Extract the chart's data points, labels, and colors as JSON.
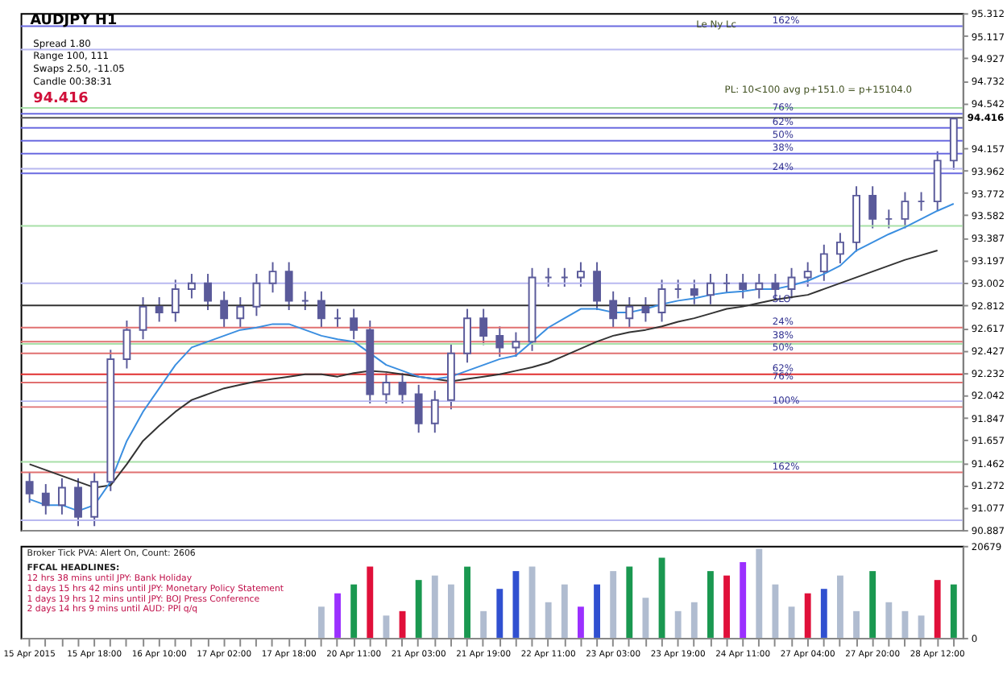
{
  "chart_data": [
    {
      "type": "candlestick",
      "color": "#5a5a9a",
      "tick_labels": "y",
      "grid": false,
      "categories": [
        "15 Apr 2015",
        null,
        null,
        null,
        "15 Apr 18:00",
        null,
        null,
        null,
        "16 Apr 10:00",
        null,
        null,
        null,
        "17 Apr 02:00",
        null,
        null,
        null,
        "17 Apr 18:00",
        null,
        null,
        null,
        "20 Apr 11:00",
        null,
        null,
        null,
        "21 Apr 03:00",
        null,
        null,
        null,
        "21 Apr 19:00",
        null,
        null,
        null,
        "22 Apr 11:00",
        null,
        null,
        null,
        "23 Apr 03:00",
        null,
        null,
        null,
        "23 Apr 19:00",
        null,
        null,
        null,
        "24 Apr 11:00",
        null,
        null,
        null,
        "27 Apr 04:00",
        null,
        null,
        null,
        "27 Apr 20:00",
        null,
        null,
        null,
        "28 Apr 12:00",
        null
      ],
      "ohlc": [
        [
          91.3,
          91.38,
          91.12,
          91.2
        ],
        [
          91.2,
          91.28,
          91.02,
          91.1
        ],
        [
          91.1,
          91.33,
          91.02,
          91.25
        ],
        [
          91.25,
          91.33,
          90.92,
          91.0
        ],
        [
          91.0,
          91.38,
          90.92,
          91.3
        ],
        [
          91.3,
          92.43,
          91.22,
          92.35
        ],
        [
          92.35,
          92.68,
          92.27,
          92.6
        ],
        [
          92.6,
          92.88,
          92.52,
          92.8
        ],
        [
          92.8,
          92.88,
          92.67,
          92.75
        ],
        [
          92.75,
          93.03,
          92.67,
          92.95
        ],
        [
          92.95,
          93.08,
          92.87,
          93.0
        ],
        [
          93.0,
          93.08,
          92.77,
          92.85
        ],
        [
          92.85,
          92.93,
          92.62,
          92.7
        ],
        [
          92.7,
          92.88,
          92.62,
          92.8
        ],
        [
          92.8,
          93.08,
          92.72,
          93.0
        ],
        [
          93.0,
          93.18,
          92.92,
          93.1
        ],
        [
          93.1,
          93.18,
          92.77,
          92.85
        ],
        [
          92.85,
          92.93,
          92.77,
          92.85
        ],
        [
          92.85,
          92.93,
          92.62,
          92.7
        ],
        [
          92.7,
          92.78,
          92.62,
          92.7
        ],
        [
          92.7,
          92.78,
          92.52,
          92.6
        ],
        [
          92.6,
          92.68,
          91.97,
          92.05
        ],
        [
          92.05,
          92.23,
          91.97,
          92.15
        ],
        [
          92.15,
          92.23,
          91.97,
          92.05
        ],
        [
          92.05,
          92.13,
          91.72,
          91.8
        ],
        [
          91.8,
          92.08,
          91.72,
          92.0
        ],
        [
          92.0,
          92.48,
          91.92,
          92.4
        ],
        [
          92.4,
          92.78,
          92.32,
          92.7
        ],
        [
          92.7,
          92.78,
          92.47,
          92.55
        ],
        [
          92.55,
          92.63,
          92.37,
          92.45
        ],
        [
          92.45,
          92.58,
          92.37,
          92.5
        ],
        [
          92.5,
          93.13,
          92.42,
          93.05
        ],
        [
          93.05,
          93.13,
          92.97,
          93.05
        ],
        [
          93.05,
          93.13,
          92.97,
          93.05
        ],
        [
          93.05,
          93.18,
          92.97,
          93.1
        ],
        [
          93.1,
          93.18,
          92.77,
          92.85
        ],
        [
          92.85,
          92.93,
          92.62,
          92.7
        ],
        [
          92.7,
          92.88,
          92.62,
          92.8
        ],
        [
          92.8,
          92.88,
          92.67,
          92.75
        ],
        [
          92.75,
          93.03,
          92.67,
          92.95
        ],
        [
          92.95,
          93.03,
          92.87,
          92.95
        ],
        [
          92.95,
          93.03,
          92.82,
          92.9
        ],
        [
          92.9,
          93.08,
          92.82,
          93.0
        ],
        [
          93.0,
          93.08,
          92.92,
          93.0
        ],
        [
          93.0,
          93.08,
          92.87,
          92.95
        ],
        [
          92.95,
          93.08,
          92.87,
          93.0
        ],
        [
          93.0,
          93.08,
          92.87,
          92.95
        ],
        [
          92.95,
          93.13,
          92.87,
          93.05
        ],
        [
          93.05,
          93.18,
          92.97,
          93.1
        ],
        [
          93.1,
          93.33,
          93.02,
          93.25
        ],
        [
          93.25,
          93.43,
          93.17,
          93.35
        ],
        [
          93.35,
          93.83,
          93.27,
          93.75
        ],
        [
          93.75,
          93.83,
          93.47,
          93.55
        ],
        [
          93.55,
          93.63,
          93.47,
          93.55
        ],
        [
          93.55,
          93.78,
          93.47,
          93.7
        ],
        [
          93.7,
          93.78,
          93.62,
          93.7
        ],
        [
          93.7,
          94.13,
          93.62,
          94.05
        ],
        [
          94.05,
          94.41,
          93.97,
          94.41
        ]
      ],
      "series": [
        {
          "type": "line",
          "color": "#333333",
          "values": [
            91.45,
            91.4,
            91.35,
            91.3,
            91.25,
            91.27,
            91.45,
            91.65,
            91.78,
            91.9,
            92.0,
            92.05,
            92.1,
            92.13,
            92.16,
            92.18,
            92.2,
            92.22,
            92.22,
            92.2,
            92.23,
            92.25,
            92.24,
            92.22,
            92.2,
            92.18,
            92.16,
            92.18,
            92.2,
            92.22,
            92.25,
            92.28,
            92.32,
            92.38,
            92.44,
            92.5,
            92.55,
            92.58,
            92.6,
            92.63,
            92.67,
            92.7,
            92.74,
            92.78,
            92.8,
            92.83,
            92.86,
            92.88,
            92.9,
            92.95,
            93.0,
            93.05,
            93.1,
            93.15,
            93.2,
            93.24,
            93.28,
            null
          ]
        },
        {
          "type": "line",
          "color": "#3a8ee0",
          "values": [
            91.15,
            91.1,
            91.1,
            91.05,
            91.1,
            91.3,
            91.65,
            91.9,
            92.1,
            92.3,
            92.45,
            92.5,
            92.55,
            92.6,
            92.62,
            92.65,
            92.65,
            92.6,
            92.55,
            92.52,
            92.5,
            92.4,
            92.3,
            92.25,
            92.2,
            92.18,
            92.2,
            92.25,
            92.3,
            92.35,
            92.38,
            92.5,
            92.62,
            92.7,
            92.78,
            92.78,
            92.75,
            92.75,
            92.78,
            92.82,
            92.85,
            92.87,
            92.9,
            92.92,
            92.93,
            92.95,
            92.95,
            92.98,
            93.02,
            93.08,
            93.15,
            93.28,
            93.35,
            93.42,
            93.48,
            93.55,
            93.62,
            93.68
          ]
        }
      ],
      "ylim": [
        90.887,
        95.312
      ],
      "yticks": [
        95.312,
        95.117,
        94.927,
        94.732,
        94.542,
        94.157,
        93.962,
        93.772,
        93.582,
        93.387,
        93.197,
        93.002,
        92.812,
        92.617,
        92.427,
        92.232,
        92.042,
        91.847,
        91.657,
        91.462,
        91.272,
        91.077,
        90.887
      ],
      "ref_lines": [
        {
          "axis": "y",
          "value": 95.0,
          "color": "#b8b8f0"
        },
        {
          "axis": "y",
          "value": 94.5,
          "color": "#a8e0a8"
        },
        {
          "axis": "y",
          "value": 93.98,
          "color": "#b8b8f0"
        },
        {
          "axis": "y",
          "value": 93.49,
          "color": "#a8e0a8"
        },
        {
          "axis": "y",
          "value": 93.0,
          "color": "#b8b8f0"
        },
        {
          "axis": "y",
          "value": 92.48,
          "color": "#a8e0a8"
        },
        {
          "axis": "y",
          "value": 91.99,
          "color": "#b8b8f0"
        },
        {
          "axis": "y",
          "value": 91.47,
          "color": "#a8e0a8"
        },
        {
          "axis": "y",
          "value": 90.97,
          "color": "#b8b8f0"
        },
        {
          "axis": "y",
          "value": 94.416,
          "label": "94.416",
          "color": "#555555"
        },
        {
          "axis": "y",
          "value": 95.2,
          "color": "#6a6ae0"
        },
        {
          "axis": "y",
          "value": 94.45,
          "color": "#6a6ae0"
        },
        {
          "axis": "y",
          "value": 94.33,
          "color": "#6a6ae0"
        },
        {
          "axis": "y",
          "value": 94.22,
          "color": "#6a6ae0"
        },
        {
          "axis": "y",
          "value": 94.11,
          "color": "#6a6ae0"
        },
        {
          "axis": "y",
          "value": 93.94,
          "color": "#6a6ae0"
        },
        {
          "axis": "y",
          "value": 92.81,
          "color": "#333333"
        },
        {
          "axis": "y",
          "value": 92.62,
          "color": "#e07070"
        },
        {
          "axis": "y",
          "value": 92.5,
          "color": "#e07070"
        },
        {
          "axis": "y",
          "value": 92.4,
          "color": "#e07070"
        },
        {
          "axis": "y",
          "value": 92.22,
          "color": "#e03030"
        },
        {
          "axis": "y",
          "value": 92.15,
          "color": "#e07070"
        },
        {
          "axis": "y",
          "value": 91.94,
          "color": "#e07070"
        },
        {
          "axis": "y",
          "value": 91.38,
          "color": "#e07070"
        }
      ],
      "annotations": [
        "AUDJPY  H1",
        "Spread  1.80",
        "Range  100, 111",
        "Swaps  2.50, -11.05",
        "Candle  00:38:31",
        "94.416",
        "PL: 10<100 avg p+151.0 = p+15104.0",
        "Le  Ny  Lc",
        {
          "text": "162%",
          "y": 95.2
        },
        {
          "text": "76%",
          "y": 94.45
        },
        {
          "text": "62%",
          "y": 94.33
        },
        {
          "text": "50%",
          "y": 94.22
        },
        {
          "text": "38%",
          "y": 94.11
        },
        {
          "text": "24%",
          "y": 93.94
        },
        {
          "text": "SLO",
          "y": 92.81
        },
        {
          "text": "24%",
          "y": 92.62
        },
        {
          "text": "38%",
          "y": 92.5
        },
        {
          "text": "50%",
          "y": 92.4
        },
        {
          "text": "62%",
          "y": 92.22
        },
        {
          "text": "76%",
          "y": 92.15
        },
        {
          "text": "100%",
          "y": 91.94
        },
        {
          "text": "162%",
          "y": 91.38
        }
      ]
    },
    {
      "type": "bar",
      "tick_labels": "xy",
      "values": [
        null,
        null,
        null,
        null,
        null,
        null,
        null,
        null,
        null,
        null,
        null,
        null,
        null,
        null,
        null,
        null,
        null,
        null,
        7000,
        10000,
        12000,
        16000,
        5000,
        6000,
        13000,
        14000,
        12000,
        16000,
        6000,
        11000,
        15000,
        16000,
        8000,
        12000,
        7000,
        12000,
        15000,
        16000,
        9000,
        18000,
        6000,
        8000,
        15000,
        14000,
        17000,
        20000,
        12000,
        7000,
        10000,
        11000,
        14000,
        6000,
        15000,
        8000,
        6000,
        5000,
        13000,
        12000
      ],
      "colors": [
        "#b0bcd0",
        "#b0bcd0",
        "#b0bcd0",
        "#b0bcd0",
        "#b0bcd0",
        "#b0bcd0",
        "#b0bcd0",
        "#b0bcd0",
        "#b0bcd0",
        "#b0bcd0",
        "#b0bcd0",
        "#b0bcd0",
        "#b0bcd0",
        "#b0bcd0",
        "#b0bcd0",
        "#b0bcd0",
        "#b0bcd0",
        "#b0bcd0",
        "#b0bcd0",
        "#9b30ff",
        "#1a9850",
        "#e0103a",
        "#b0bcd0",
        "#e0103a",
        "#1a9850",
        "#b0bcd0",
        "#b0bcd0",
        "#1a9850",
        "#b0bcd0",
        "#3050d0",
        "#3050d0",
        "#b0bcd0",
        "#b0bcd0",
        "#b0bcd0",
        "#9b30ff",
        "#3050d0",
        "#b0bcd0",
        "#1a9850",
        "#b0bcd0",
        "#1a9850",
        "#b0bcd0",
        "#b0bcd0",
        "#1a9850",
        "#e0103a",
        "#9b30ff",
        "#b0bcd0",
        "#b0bcd0",
        "#b0bcd0",
        "#e0103a",
        "#3050d0",
        "#b0bcd0",
        "#b0bcd0",
        "#1a9850",
        "#b0bcd0",
        "#b0bcd0",
        "#b0bcd0",
        "#e0103a",
        "#1a9850"
      ],
      "ylim": [
        0,
        20679
      ],
      "yticks": [
        20679,
        0
      ],
      "annotations": [
        "Broker Tick PVA:   Alert On,  Count: 2606",
        "FFCAL HEADLINES:",
        "12 hrs 38 mins until JPY: Bank Holiday",
        "1 days 15 hrs 42 mins until JPY: Monetary Policy Statement",
        "1 days 19 hrs 12 mins until JPY: BOJ Press Conference",
        "2 days 14 hrs 9 mins until AUD: PPI q/q"
      ]
    }
  ]
}
